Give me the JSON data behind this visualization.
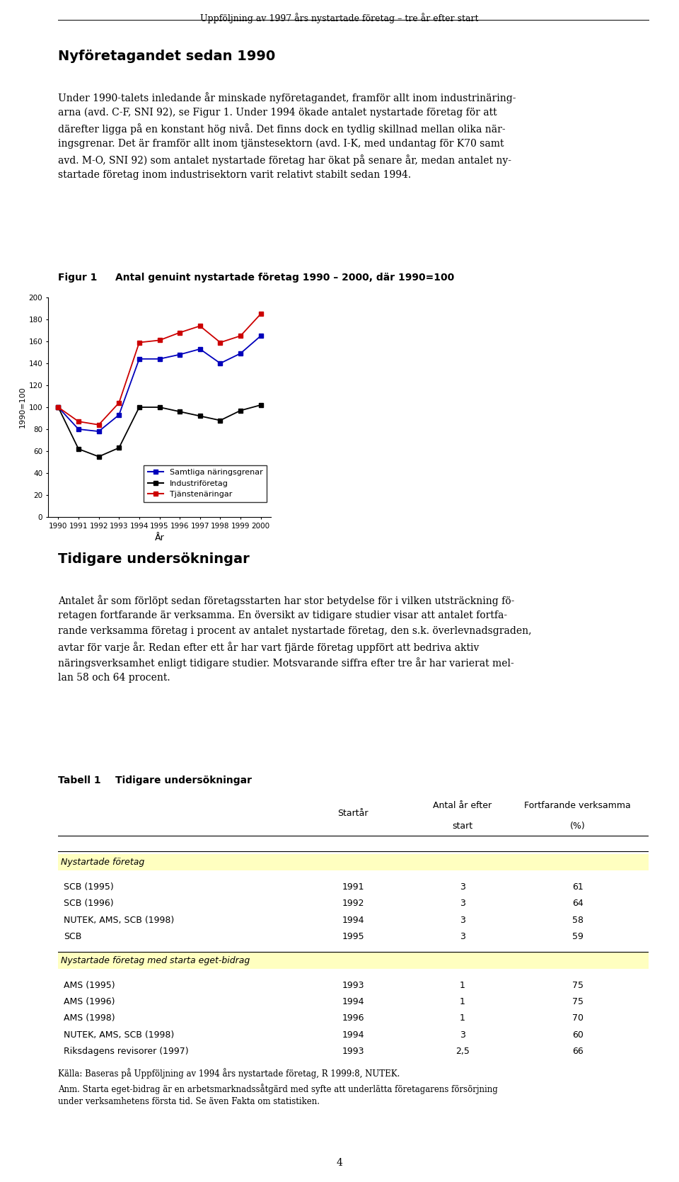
{
  "page_title": "Uppföljning av 1997 års nystartade företag – tre år efter start",
  "page_number": "4",
  "section1_title": "Nyföretagandet sedan 1990",
  "fig1_label": "Figur 1",
  "fig1_title": "Antal genuint nystartade företag 1990 – 2000, där 1990=100",
  "years": [
    1990,
    1991,
    1992,
    1993,
    1994,
    1995,
    1996,
    1997,
    1998,
    1999,
    2000
  ],
  "samtliga": [
    100,
    80,
    78,
    93,
    144,
    144,
    148,
    153,
    140,
    149,
    165
  ],
  "industri": [
    100,
    62,
    55,
    63,
    100,
    100,
    96,
    92,
    88,
    97,
    102
  ],
  "tjanste": [
    100,
    87,
    84,
    104,
    159,
    161,
    168,
    174,
    159,
    165,
    185
  ],
  "ylabel": "1990=100",
  "xlabel": "År",
  "ylim": [
    0,
    200
  ],
  "yticks": [
    0,
    20,
    40,
    60,
    80,
    100,
    120,
    140,
    160,
    180,
    200
  ],
  "legend_samtliga": "Samtliga näringsgrenar",
  "legend_industri": "Industriföretag",
  "legend_tjanste": "Tjänstenäringar",
  "color_samtliga": "#0000BB",
  "color_industri": "#000000",
  "color_tjanste": "#CC0000",
  "section2_title": "Tidigare undersökningar",
  "table1_label": "Tabell 1",
  "table1_title": "Tidigare undersökningar",
  "table_section1": "Nystartade företag",
  "table_section2": "Nystartade företag med starta eget-bidrag",
  "table_rows_s1": [
    [
      "SCB (1995)",
      "1991",
      "3",
      "61"
    ],
    [
      "SCB (1996)",
      "1992",
      "3",
      "64"
    ],
    [
      "NUTEK, AMS, SCB (1998)",
      "1994",
      "3",
      "58"
    ],
    [
      "SCB",
      "1995",
      "3",
      "59"
    ]
  ],
  "table_rows_s2": [
    [
      "AMS (1995)",
      "1993",
      "1",
      "75"
    ],
    [
      "AMS (1996)",
      "1994",
      "1",
      "75"
    ],
    [
      "AMS (1998)",
      "1996",
      "1",
      "70"
    ],
    [
      "NUTEK, AMS, SCB (1998)",
      "1994",
      "3",
      "60"
    ],
    [
      "Riksdagens revisorer (1997)",
      "1993",
      "2,5",
      "66"
    ]
  ],
  "source_line1": "Källa: Baseras på ",
  "source_italic": "Uppföljning av 1994 års nystartade företag",
  "source_line1_end": ", R 1999:8, NUTEK.",
  "anm_text": "Anm. Starta eget-bidrag är en arbetsmarknadssåtgärd med syfte att underlätta företagarens försörjning\nunder verksamhetens första tid. Se även Fakta om statistiken.",
  "background_color": "#ffffff",
  "text_color": "#000000",
  "body1_lines": [
    "Under 1990-talets inledande år minskade nyföretagandet, framför allt inom industrinäring-",
    "arna (avd. C-F, SNI 92), se Figur 1. Under 1994 ökade antalet nystartade företag för att",
    "därefter ligga på en konstant hög nivå. Det finns dock en tydlig skillnad mellan olika när-",
    "ingsgrenar. Det är framför allt inom tjänstesektorn (avd. I-K, med undantag för K70 samt",
    "avd. M-O, SNI 92) som antalet nystartade företag har ökat på senare år, medan antalet ny-",
    "startade företag inom industrisektorn varit relativt stabilt sedan 1994."
  ],
  "body2_lines": [
    "Antalet år som förlöpt sedan företagsstarten har stor betydelse för i vilken utsträckning fö-",
    "retagen fortfarande är verksamma. En översikt av tidigare studier visar att antalet fortfa-",
    "rande verksamma företag i procent av antalet nystartade företag, den s.k. överlevnadsgraden,",
    "avtar för varje år. Redan efter ett år har vart fjärde företag uppfört att bedriva aktiv",
    "näringsverksamhet enligt tidigare studier. Motsvarande siffra efter tre år har varierat mel-",
    "lan 58 och 64 procent."
  ]
}
